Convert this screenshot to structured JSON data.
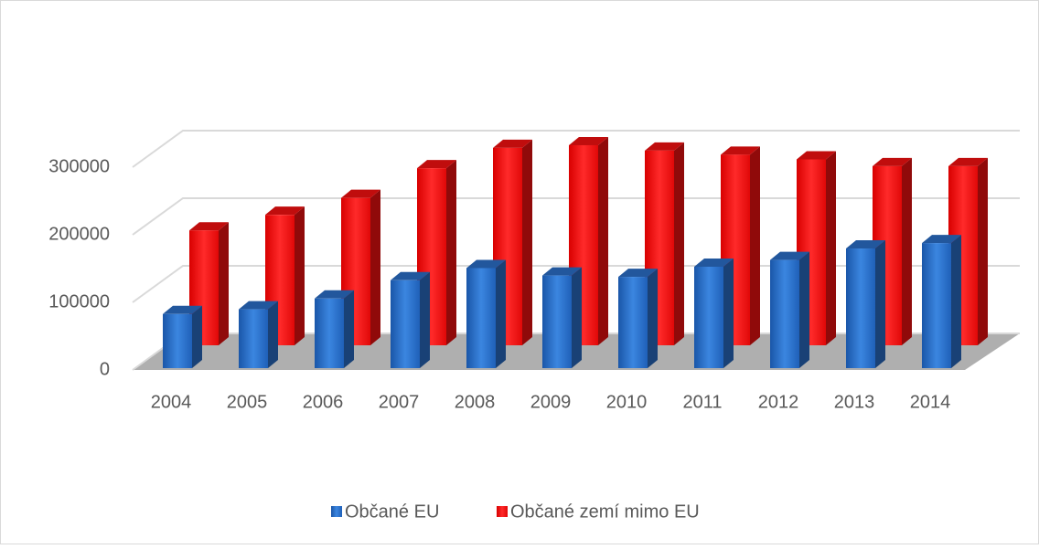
{
  "chart_data": {
    "type": "bar3d",
    "categories": [
      "2004",
      "2005",
      "2006",
      "2007",
      "2008",
      "2009",
      "2010",
      "2011",
      "2012",
      "2013",
      "2014"
    ],
    "series": [
      {
        "name": "Občané EU",
        "color": "#2a6dc4",
        "values": [
          80000,
          87000,
          103000,
          130000,
          148000,
          137000,
          135000,
          150000,
          160000,
          177000,
          185000
        ]
      },
      {
        "name": "Občané zemí mimo EU",
        "color": "#f01010",
        "values": [
          170000,
          193000,
          218000,
          262000,
          292000,
          296000,
          288000,
          282000,
          275000,
          265000,
          265000
        ]
      }
    ],
    "ylim": [
      0,
      300000
    ],
    "yticks": [
      0,
      100000,
      200000,
      300000
    ],
    "grid": true,
    "legend": "bottom"
  }
}
